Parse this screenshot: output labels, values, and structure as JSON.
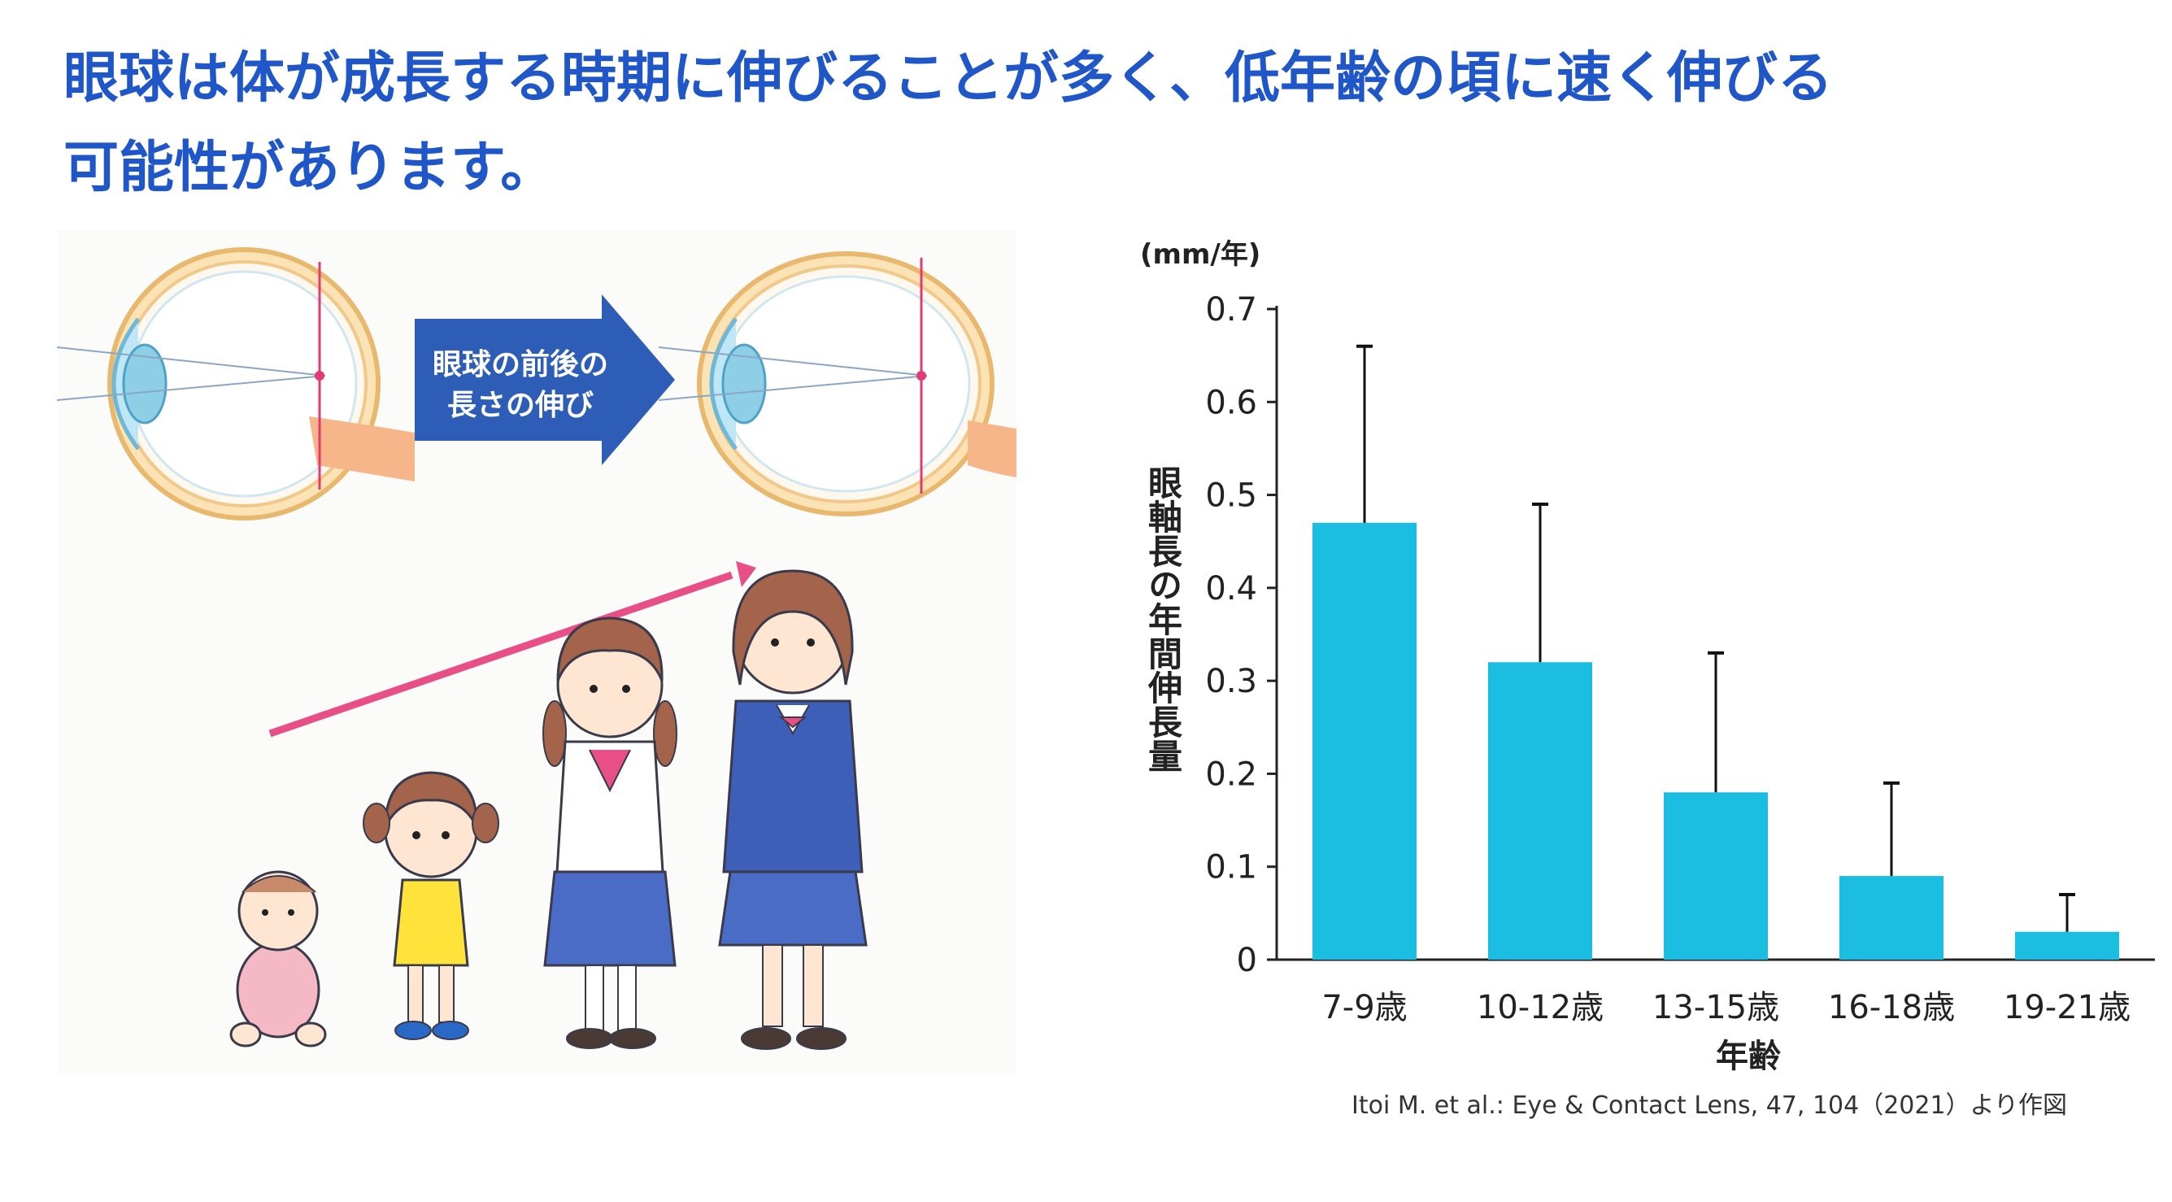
{
  "headline": {
    "line1": "眼球は体が成長する時期に伸びることが多く、低年齢の頃に速く伸びる",
    "line2": "可能性があります。"
  },
  "illustration": {
    "arrow_label_line1": "眼球の前後の",
    "arrow_label_line2": "長さの伸び",
    "colors": {
      "arrow_fill": "#2e5db7",
      "growth_arrow": "#e84f86",
      "focal_line": "#e23b74",
      "eye_outer": "#f6d79a",
      "cornea": "#8fcfe6"
    }
  },
  "chart_data": {
    "type": "bar",
    "unit": "(mm/年)",
    "ylabel": "眼軸長の年間伸長量",
    "xlabel": "年齢",
    "categories": [
      "7-9歳",
      "10-12歳",
      "13-15歳",
      "16-18歳",
      "19-21歳"
    ],
    "values": [
      0.47,
      0.32,
      0.18,
      0.09,
      0.03
    ],
    "error_upper": [
      0.66,
      0.49,
      0.33,
      0.19,
      0.07
    ],
    "ylim": [
      0,
      0.7
    ],
    "yticks": [
      "0",
      "0.1",
      "0.2",
      "0.3",
      "0.4",
      "0.5",
      "0.6",
      "0.7"
    ],
    "bar_color": "#1bbde0",
    "grid": false
  },
  "citation": "Itoi M. et al.: Eye & Contact Lens, 47, 104（2021）より作図"
}
